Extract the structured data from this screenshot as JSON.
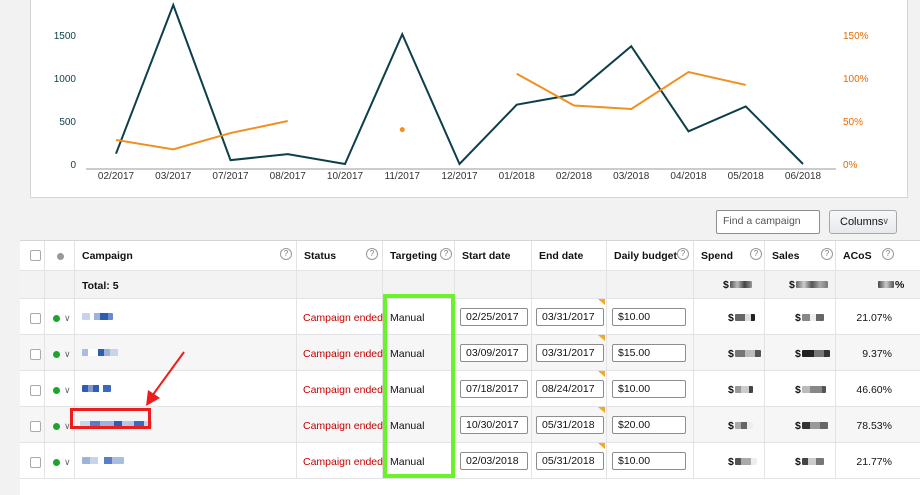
{
  "chart_data": {
    "type": "line",
    "categories": [
      "02/2017",
      "03/2017",
      "07/2017",
      "08/2017",
      "10/2017",
      "11/2017",
      "12/2017",
      "01/2018",
      "02/2018",
      "03/2018",
      "04/2018",
      "05/2018",
      "06/2018"
    ],
    "y_left_ticks": [
      "0",
      "500",
      "1000",
      "1500"
    ],
    "y_right_ticks": [
      "0%",
      "50%",
      "100%",
      "150%"
    ],
    "ylim_left": [
      0,
      1850
    ],
    "ylim_right": [
      0,
      1.85
    ],
    "series": [
      {
        "axis": "left",
        "color": "#0d3f4a",
        "values": [
          120,
          1850,
          45,
          115,
          0,
          1510,
          0,
          690,
          810,
          1370,
          380,
          670,
          0
        ]
      },
      {
        "axis": "right",
        "color": "#f0901e",
        "values": [
          0.28,
          0.17,
          0.36,
          0.5,
          null,
          0.4,
          null,
          1.05,
          0.68,
          0.64,
          1.07,
          0.92,
          null
        ]
      }
    ]
  },
  "toolbar": {
    "find_placeholder": "Find a campaign",
    "columns_label": "Columns",
    "columns_chevron_icon": "chevron-down-icon"
  },
  "table": {
    "headers": {
      "campaign": "Campaign",
      "status": "Status",
      "targeting": "Targeting",
      "start_date": "Start date",
      "end_date": "End date",
      "daily_budget": "Daily budget",
      "spend": "Spend",
      "sales": "Sales",
      "acos": "ACoS"
    },
    "help_icon": "?",
    "total_label": "Total: 5",
    "rows": [
      {
        "status": "Campaign ended",
        "targeting": "Manual",
        "start_date": "02/25/2017",
        "end_date": "03/31/2017",
        "budget": "$10.00",
        "spend_sign": "$",
        "sales_sign": "$",
        "acos": "21.07%"
      },
      {
        "status": "Campaign ended",
        "targeting": "Manual",
        "start_date": "03/09/2017",
        "end_date": "03/31/2017",
        "budget": "$15.00",
        "spend_sign": "$",
        "sales_sign": "$",
        "acos": "9.37%"
      },
      {
        "status": "Campaign ended",
        "targeting": "Manual",
        "start_date": "07/18/2017",
        "end_date": "08/24/2017",
        "budget": "$10.00",
        "spend_sign": "$",
        "sales_sign": "$",
        "acos": "46.60%"
      },
      {
        "status": "Campaign ended",
        "targeting": "Manual",
        "start_date": "10/30/2017",
        "end_date": "05/31/2018",
        "budget": "$20.00",
        "spend_sign": "$",
        "sales_sign": "$",
        "acos": "78.53%"
      },
      {
        "status": "Campaign ended",
        "targeting": "Manual",
        "start_date": "02/03/2018",
        "end_date": "05/31/2018",
        "budget": "$10.00",
        "spend_sign": "$",
        "sales_sign": "$",
        "acos": "21.77%"
      }
    ],
    "total_spend_sign": "$",
    "total_sales_sign": "$",
    "total_acos_suffix": "%"
  }
}
